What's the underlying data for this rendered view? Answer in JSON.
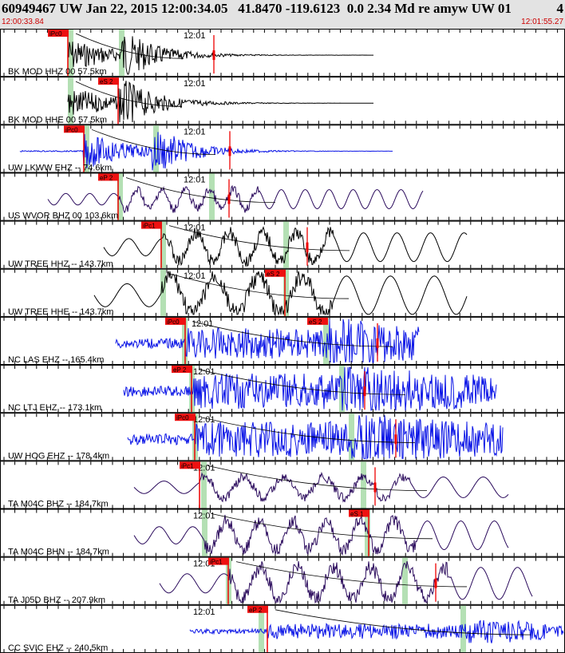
{
  "header": {
    "title": "60949467 UW Jan 22, 2015 12:00:34.05   41.8470 -119.6123  0.0 2.34 Md re amyw UW 01",
    "count": "4",
    "start_time": "12:00:33.84",
    "end_time": "12:01:55.27"
  },
  "tick_label": "12:01",
  "colors": {
    "black": "#000000",
    "blue": "#0a14e6",
    "purple": "#2a0a5c",
    "pick": "#ee0000",
    "window": "#b4e0b4"
  },
  "traces": [
    {
      "label": "BK MOD HHZ 00 57.5km",
      "color": "black",
      "start": 85,
      "end": 468,
      "style": "impulse",
      "amp": 22,
      "period": 4,
      "onset": 85,
      "onset2": 150,
      "pick": {
        "label": "iPc0",
        "pos": 85
      },
      "windows": [
        88,
        152
      ],
      "red_marks": [
        268
      ],
      "tick": 250
    },
    {
      "label": "BK MOD HHE 00 57.5km",
      "color": "black",
      "start": 85,
      "end": 468,
      "style": "impulse",
      "amp": 22,
      "period": 4,
      "onset": 85,
      "onset2": 148,
      "pick": {
        "label": "eS 2",
        "pos": 148
      },
      "windows": [
        88
      ],
      "red_marks": [],
      "tick": 250
    },
    {
      "label": "UW LKWW EHZ -- 74.6km",
      "color": "blue",
      "start": 25,
      "end": 492,
      "style": "impulse",
      "amp": 24,
      "period": 4,
      "onset": 105,
      "onset2": 190,
      "pick": {
        "label": "iPc0",
        "pos": 105
      },
      "windows": [
        108,
        195
      ],
      "red_marks": [
        288
      ],
      "tick": 250
    },
    {
      "label": "US WVOR BHZ 00 103.6km",
      "color": "purple",
      "start": 60,
      "end": 530,
      "style": "wave",
      "amp": 12,
      "period": 30,
      "onset": 148,
      "onset2": 265,
      "pick": {
        "label": "eP 2",
        "pos": 148
      },
      "windows": [
        150,
        265
      ],
      "red_marks": [
        287
      ],
      "tick": 250
    },
    {
      "label": "UW TREE HHZ -- 143.7km",
      "color": "black",
      "start": 130,
      "end": 585,
      "style": "wave",
      "amp": 18,
      "period": 42,
      "onset": 202,
      "onset2": 358,
      "pick": {
        "label": "iPc1",
        "pos": 202
      },
      "windows": [
        204,
        358
      ],
      "red_marks": [
        385
      ],
      "tick": 250
    },
    {
      "label": "UW TREE HHE -- 143.7km",
      "color": "black",
      "start": 118,
      "end": 585,
      "style": "wave",
      "amp": 24,
      "period": 55,
      "onset": 202,
      "onset2": 357,
      "pick": {
        "label": "eS 2",
        "pos": 357
      },
      "windows": [
        204,
        358
      ],
      "red_marks": [],
      "tick": 250
    },
    {
      "label": "NC LAS EHZ -- 165.4km",
      "color": "blue",
      "start": 145,
      "end": 525,
      "style": "noise",
      "amp": 12,
      "period": 4,
      "onset": 232,
      "onset2": 412,
      "pick": {
        "label": "iPc0",
        "pos": 232
      },
      "windows": [
        231,
        408
      ],
      "red_marks": [
        473
      ],
      "pick2": {
        "label": "eS 2",
        "pos": 410
      },
      "tick": 260
    },
    {
      "label": "NC LTJ EHZ -- 173.1km",
      "color": "blue",
      "start": 155,
      "end": 622,
      "style": "noise",
      "amp": 14,
      "period": 4,
      "onset": 240,
      "onset2": 428,
      "pick": {
        "label": "eP 2",
        "pos": 240
      },
      "windows": [
        240,
        428
      ],
      "red_marks": [
        457
      ],
      "tick": 262
    },
    {
      "label": "UW HOG EHZ -- 178.4km",
      "color": "blue",
      "start": 160,
      "end": 630,
      "style": "noise",
      "amp": 14,
      "period": 4,
      "onset": 244,
      "onset2": 440,
      "pick": {
        "label": "iPc0",
        "pos": 244
      },
      "windows": [
        244,
        440
      ],
      "red_marks": [
        496
      ],
      "tick": 262
    },
    {
      "label": "TA M04C BHZ -- 184.7km",
      "color": "purple",
      "start": 168,
      "end": 637,
      "style": "wave",
      "amp": 13,
      "period": 50,
      "onset": 250,
      "onset2": 455,
      "pick": {
        "label": "iPc1",
        "pos": 250
      },
      "windows": [
        255,
        455
      ],
      "red_marks": [
        470
      ],
      "tick": 262
    },
    {
      "label": "TA M04C BHN -- 184.7km",
      "color": "purple",
      "start": 168,
      "end": 637,
      "style": "wave",
      "amp": 18,
      "period": 42,
      "onset": 255,
      "onset2": 462,
      "pick": {
        "label": "eS 1",
        "pos": 462
      },
      "windows": [
        256,
        460
      ],
      "red_marks": [],
      "tick": 262
    },
    {
      "label": "TA J05D BHZ -- 207.9km",
      "color": "purple",
      "start": 200,
      "end": 667,
      "style": "wave",
      "amp": 20,
      "period": 46,
      "onset": 286,
      "onset2": 505,
      "pick": {
        "label": "iPc1",
        "pos": 286
      },
      "windows": [
        286,
        507
      ],
      "red_marks": [
        546
      ],
      "tick": 262
    },
    {
      "label": "CC SVIC EHZ -- 240.5km",
      "color": "blue",
      "start": 238,
      "end": 706,
      "style": "noise",
      "amp": 6,
      "period": 4,
      "onset": 335,
      "onset2": 585,
      "pick": {
        "label": "eP 2",
        "pos": 335
      },
      "windows": [
        327,
        580
      ],
      "red_marks": [],
      "tick": 262
    }
  ]
}
